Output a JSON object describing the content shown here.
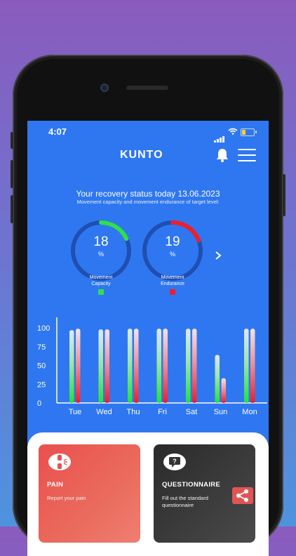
{
  "status_bar": {
    "time": "4:07"
  },
  "header": {
    "logo": "KUNTO"
  },
  "recovery": {
    "title": "Your recovery status today 13.06.2023",
    "subtitle": "Movement capacity and movement endurance of target level:"
  },
  "gauges": [
    {
      "value": "18",
      "unit": "%",
      "fraction": 0.18,
      "label_line1": "Movement",
      "label_line2": "Capacity",
      "color": "#2fe04a"
    },
    {
      "value": "19",
      "unit": "%",
      "fraction": 0.19,
      "label_line1": "Movement",
      "label_line2": "Endurance",
      "color": "#f01e2a"
    }
  ],
  "chart_data": {
    "type": "bar",
    "categories": [
      "Tue",
      "Wed",
      "Thu",
      "Fri",
      "Sat",
      "Sun",
      "Mon"
    ],
    "series": [
      {
        "values": [
          97,
          98,
          99,
          99,
          99,
          64,
          99
        ],
        "color": "#2fe04a"
      },
      {
        "values": [
          99,
          98,
          99,
          99,
          99,
          33,
          99
        ],
        "color": "#f01e2a"
      }
    ],
    "y_ticks": [
      "0",
      "25",
      "50",
      "75",
      "100"
    ],
    "ylim": [
      0,
      100
    ]
  },
  "cards": {
    "pain": {
      "title": "PAIN",
      "description": "Report your pain"
    },
    "questionnaire": {
      "title": "QUESTIONNAIRE",
      "description_line1": "Fill out the standard",
      "description_line2": "questionnaire"
    }
  },
  "icons": {
    "bell": "bell-icon",
    "menu": "hamburger-menu-icon",
    "next": "chevron-right-icon",
    "pain": "knee-pain-icon",
    "questionnaire": "question-bubble-icon",
    "share": "share-icon"
  }
}
